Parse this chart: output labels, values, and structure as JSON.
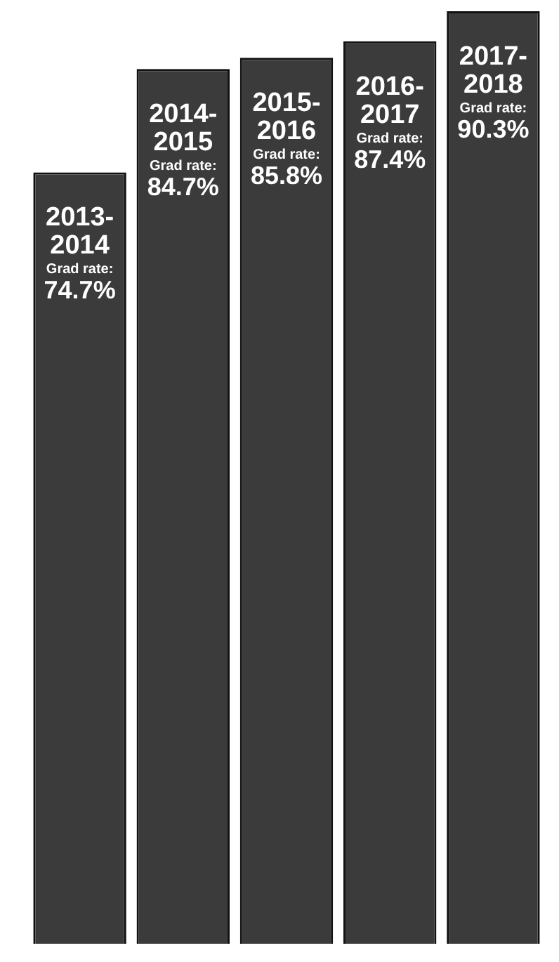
{
  "chart_data": {
    "type": "bar",
    "categories": [
      "2013-2014",
      "2014-2015",
      "2015-2016",
      "2016-2017",
      "2017-2018"
    ],
    "values": [
      74.7,
      84.7,
      85.8,
      87.4,
      90.3
    ],
    "color": "#3b3b3b",
    "value_labels": [
      "74.7%",
      "84.7%",
      "85.8%",
      "87.4%",
      "90.3%"
    ],
    "annotations": [
      "Grad rate:",
      "Grad rate:",
      "Grad rate:",
      "Grad rate:",
      "Grad rate:"
    ]
  }
}
